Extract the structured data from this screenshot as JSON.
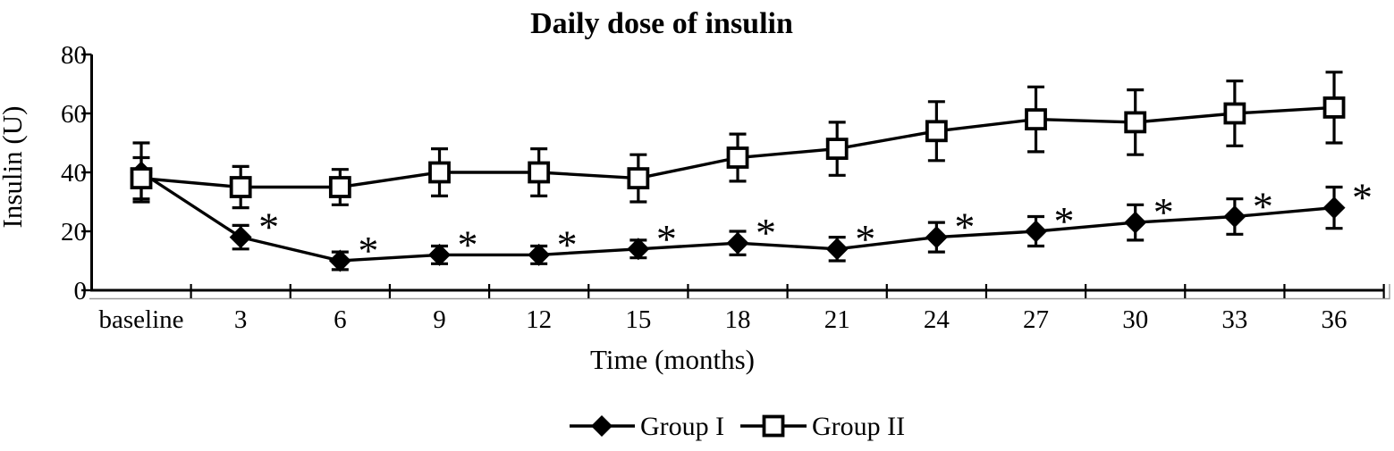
{
  "figure": {
    "background": "#ffffff",
    "ink_color": "#000000",
    "shadow_line_color": "#9a9a9a"
  },
  "chart_data": {
    "type": "line",
    "title": "Daily dose of insulin",
    "xlabel": "Time (months)",
    "ylabel": "Insulin (U)",
    "categories": [
      "baseline",
      "3",
      "6",
      "9",
      "12",
      "15",
      "18",
      "21",
      "24",
      "27",
      "30",
      "33",
      "36"
    ],
    "ylim": [
      0,
      80
    ],
    "yticks": [
      0,
      20,
      40,
      60,
      80
    ],
    "grid": false,
    "error_bars": true,
    "significance_symbol": "*",
    "legend_position": "bottom-center",
    "series": [
      {
        "name": "Group I",
        "marker": "filled-diamond",
        "color": "#000000",
        "values": [
          40,
          18,
          10,
          12,
          12,
          14,
          16,
          14,
          18,
          20,
          23,
          25,
          28
        ],
        "errors": [
          10,
          4,
          3,
          3,
          3,
          3,
          4,
          4,
          5,
          5,
          6,
          6,
          7
        ],
        "significant": [
          false,
          true,
          true,
          true,
          true,
          true,
          true,
          true,
          true,
          true,
          true,
          true,
          true
        ]
      },
      {
        "name": "Group II",
        "marker": "open-square",
        "color": "#000000",
        "values": [
          38,
          35,
          35,
          40,
          40,
          38,
          45,
          48,
          54,
          58,
          57,
          60,
          62
        ],
        "errors": [
          7,
          7,
          6,
          8,
          8,
          8,
          8,
          9,
          10,
          11,
          11,
          11,
          12
        ],
        "significant": [
          false,
          false,
          false,
          false,
          false,
          false,
          false,
          false,
          false,
          false,
          false,
          false,
          false
        ]
      }
    ]
  }
}
